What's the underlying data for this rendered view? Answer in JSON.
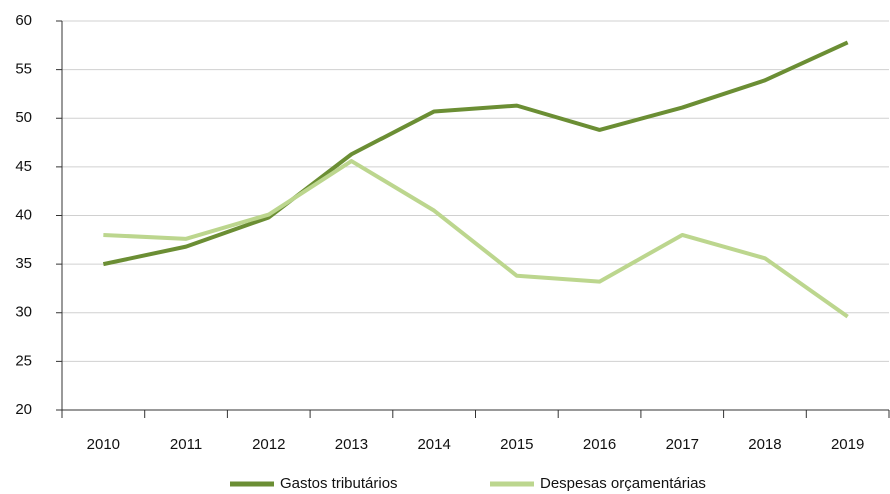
{
  "chart_data": {
    "type": "line",
    "categories": [
      "2010",
      "2011",
      "2012",
      "2013",
      "2014",
      "2015",
      "2016",
      "2017",
      "2018",
      "2019"
    ],
    "series": [
      {
        "name": "Gastos tributários",
        "color": "#6b8e34",
        "values": [
          35.0,
          36.8,
          39.8,
          46.3,
          50.7,
          51.3,
          48.8,
          51.1,
          53.9,
          57.8
        ]
      },
      {
        "name": "Despesas orçamentárias",
        "color": "#bcd68e",
        "values": [
          38.0,
          37.6,
          40.1,
          45.6,
          40.5,
          33.8,
          33.2,
          38.0,
          35.6,
          29.6
        ]
      }
    ],
    "ylim": [
      20,
      60
    ],
    "yticks": [
      20,
      25,
      30,
      35,
      40,
      45,
      50,
      55,
      60
    ],
    "grid": true,
    "legend": "bottom"
  }
}
